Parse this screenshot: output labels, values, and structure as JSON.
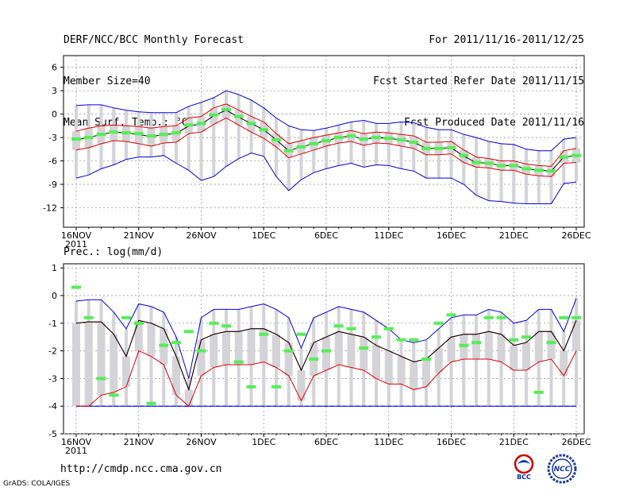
{
  "header": {
    "title": "DERF/NCC/BCC Monthly Forecast",
    "member_size": "Member Size=40",
    "variable": "Mean Surf. Temp.: °C",
    "period": "For 2011/11/16-2011/12/25",
    "fcst_started": "Fcst Started Refer Date 2011/11/15",
    "fcst_produced": "Fcst Produced Date 2011/11/16"
  },
  "footer": {
    "url": "http://cmdp.ncc.cma.gov.cn",
    "credit": "GrADS: COLA/IGES",
    "logo_bcc": "BCC",
    "logo_ncc": "NCC"
  },
  "colors": {
    "box": "#d3d3d8",
    "median": "#55ee55",
    "mean": "#000000",
    "spread": "#dd0000",
    "extreme": "#0000dd",
    "ref": "#0000ff"
  },
  "chart_data": [
    {
      "type": "line",
      "title": "Mean Surf. Temp.: °C",
      "x_tick_labels": [
        "16NOV",
        "21NOV",
        "26NOV",
        "1DEC",
        "6DEC",
        "11DEC",
        "16DEC",
        "21DEC",
        "26DEC"
      ],
      "x_year_label": "2011",
      "y_tick_labels": [
        "6",
        "3",
        "0",
        "-3",
        "-6",
        "-9",
        "-12"
      ],
      "ylim": [
        -14.5,
        7.5
      ],
      "days": 41,
      "series": [
        {
          "name": "max",
          "values": [
            1.1,
            1.2,
            1.2,
            0.8,
            0.5,
            0.3,
            0.2,
            0.2,
            0.2,
            1.0,
            1.5,
            2.1,
            3.0,
            2.5,
            1.8,
            0.8,
            -0.5,
            -1.5,
            -2.0,
            -2.1,
            -1.8,
            -1.4,
            -1.0,
            -0.8,
            -1.2,
            -1.2,
            -1.0,
            -1.1,
            -1.7,
            -2.0,
            -2.0,
            -2.6,
            -3.0,
            -3.5,
            -3.8,
            -3.9,
            -4.5,
            -4.7,
            -4.7,
            -3.2,
            -3.0
          ]
        },
        {
          "name": "upper",
          "values": [
            -2.2,
            -1.8,
            -1.5,
            -1.4,
            -1.5,
            -1.6,
            -1.8,
            -1.6,
            -1.5,
            -0.5,
            -0.3,
            0.8,
            1.3,
            0.5,
            -0.3,
            -1.0,
            -2.5,
            -3.8,
            -3.4,
            -3.0,
            -2.7,
            -2.4,
            -2.1,
            -2.5,
            -2.3,
            -2.4,
            -2.6,
            -2.8,
            -3.6,
            -3.6,
            -3.5,
            -4.6,
            -5.5,
            -5.7,
            -6.0,
            -6.0,
            -6.4,
            -6.6,
            -6.7,
            -4.7,
            -4.4
          ]
        },
        {
          "name": "mean",
          "values": [
            -3.3,
            -3.0,
            -2.6,
            -2.3,
            -2.4,
            -2.6,
            -2.9,
            -2.6,
            -2.5,
            -1.5,
            -1.3,
            -0.2,
            0.5,
            -0.4,
            -1.2,
            -2.0,
            -3.3,
            -4.7,
            -4.2,
            -3.8,
            -3.4,
            -3.0,
            -2.8,
            -3.2,
            -3.0,
            -3.1,
            -3.3,
            -3.6,
            -4.4,
            -4.4,
            -4.3,
            -5.4,
            -6.2,
            -6.3,
            -6.6,
            -6.6,
            -7.0,
            -7.2,
            -7.3,
            -5.5,
            -5.3
          ]
        },
        {
          "name": "lower",
          "values": [
            -4.6,
            -4.3,
            -3.8,
            -3.4,
            -3.5,
            -3.8,
            -4.1,
            -3.7,
            -3.6,
            -2.5,
            -2.3,
            -1.3,
            -0.5,
            -1.4,
            -2.3,
            -3.1,
            -4.2,
            -5.6,
            -5.1,
            -4.6,
            -4.1,
            -3.7,
            -3.5,
            -4.0,
            -3.7,
            -3.8,
            -4.1,
            -4.4,
            -5.2,
            -5.2,
            -5.1,
            -6.2,
            -6.8,
            -6.9,
            -7.2,
            -7.2,
            -7.7,
            -7.9,
            -8.0,
            -6.3,
            -6.2
          ]
        },
        {
          "name": "min",
          "values": [
            -8.2,
            -7.8,
            -7.0,
            -6.5,
            -5.8,
            -5.5,
            -5.5,
            -5.3,
            -6.3,
            -7.2,
            -8.5,
            -8.0,
            -6.7,
            -5.7,
            -5.0,
            -5.4,
            -8.0,
            -9.8,
            -8.4,
            -7.5,
            -7.0,
            -6.6,
            -6.3,
            -6.8,
            -6.5,
            -6.6,
            -7.0,
            -7.3,
            -8.2,
            -8.2,
            -8.2,
            -9.0,
            -10.4,
            -11.1,
            -11.2,
            -11.4,
            -11.5,
            -11.5,
            -11.5,
            -8.9,
            -8.7
          ]
        },
        {
          "name": "median",
          "values": [
            -3.2,
            -3.0,
            -2.6,
            -2.3,
            -2.4,
            -2.5,
            -2.8,
            -2.6,
            -2.4,
            -1.4,
            -1.2,
            -0.1,
            0.6,
            -0.3,
            -1.2,
            -2.0,
            -3.3,
            -4.7,
            -4.2,
            -3.8,
            -3.4,
            -3.0,
            -2.8,
            -3.2,
            -3.0,
            -3.1,
            -3.3,
            -3.6,
            -4.4,
            -4.4,
            -4.3,
            -5.3,
            -6.2,
            -6.3,
            -6.6,
            -6.6,
            -7.0,
            -7.2,
            -7.3,
            -5.5,
            -5.3
          ]
        }
      ]
    },
    {
      "type": "line",
      "title": "Prec.: log(mm/d)",
      "x_tick_labels": [
        "16NOV",
        "21NOV",
        "26NOV",
        "1DEC",
        "6DEC",
        "11DEC",
        "16DEC",
        "21DEC",
        "26DEC"
      ],
      "x_year_label": "2011",
      "y_tick_labels": [
        "1",
        "0",
        "-1",
        "-2",
        "-3",
        "-4",
        "-5"
      ],
      "ylim": [
        -5,
        1.15
      ],
      "days": 41,
      "reference_line": -4,
      "series": [
        {
          "name": "max",
          "values": [
            -0.2,
            -0.15,
            -0.15,
            -0.6,
            -1.2,
            -0.3,
            -0.4,
            -0.6,
            -1.5,
            -3.0,
            -0.8,
            -0.5,
            -0.5,
            -0.5,
            -0.4,
            -0.3,
            -0.5,
            -0.8,
            -1.9,
            -0.8,
            -0.6,
            -0.4,
            -0.5,
            -0.6,
            -0.9,
            -1.2,
            -1.6,
            -1.7,
            -1.6,
            -1.2,
            -0.8,
            -0.7,
            -0.7,
            -0.5,
            -0.6,
            -1.0,
            -0.9,
            -0.5,
            -0.5,
            -1.3,
            -0.1
          ]
        },
        {
          "name": "upper",
          "values": [
            -1.0,
            -0.95,
            -0.95,
            -1.4,
            -2.2,
            -0.9,
            -1.0,
            -1.2,
            -2.2,
            -3.4,
            -1.6,
            -1.4,
            -1.3,
            -1.3,
            -1.2,
            -1.2,
            -1.4,
            -1.7,
            -2.7,
            -1.7,
            -1.5,
            -1.3,
            -1.4,
            -1.5,
            -1.8,
            -2.0,
            -2.2,
            -2.4,
            -2.3,
            -1.9,
            -1.5,
            -1.4,
            -1.4,
            -1.3,
            -1.4,
            -1.8,
            -1.7,
            -1.3,
            -1.3,
            -2.0,
            -0.9
          ]
        },
        {
          "name": "mean",
          "values": [
            -1.0,
            -0.95,
            -0.95,
            -1.4,
            -2.2,
            -0.9,
            -1.0,
            -1.2,
            -2.2,
            -3.4,
            -1.6,
            -1.4,
            -1.3,
            -1.3,
            -1.2,
            -1.2,
            -1.4,
            -1.7,
            -2.7,
            -1.7,
            -1.5,
            -1.3,
            -1.4,
            -1.5,
            -1.8,
            -2.0,
            -2.2,
            -2.4,
            -2.3,
            -1.9,
            -1.5,
            -1.4,
            -1.4,
            -1.3,
            -1.4,
            -1.8,
            -1.7,
            -1.3,
            -1.3,
            -2.0,
            -0.9
          ]
        },
        {
          "name": "lower",
          "values": [
            -4.0,
            -4.0,
            -3.6,
            -3.5,
            -3.3,
            -2.0,
            -2.2,
            -2.5,
            -3.6,
            -4.0,
            -2.9,
            -2.6,
            -2.5,
            -2.5,
            -2.5,
            -2.4,
            -2.6,
            -2.9,
            -3.8,
            -2.9,
            -2.7,
            -2.5,
            -2.6,
            -2.7,
            -3.0,
            -3.2,
            -3.2,
            -3.4,
            -3.3,
            -2.8,
            -2.4,
            -2.3,
            -2.3,
            -2.3,
            -2.4,
            -2.7,
            -2.7,
            -2.4,
            -2.3,
            -2.9,
            -2.0
          ]
        },
        {
          "name": "min",
          "values": [
            -4.0,
            -4.0,
            -4.0,
            -4.0,
            -4.0,
            -4.0,
            -4.0,
            -4.0,
            -4.0,
            -4.0,
            -4.0,
            -4.0,
            -4.0,
            -4.0,
            -4.0,
            -4.0,
            -4.0,
            -4.0,
            -4.0,
            -4.0,
            -4.0,
            -4.0,
            -4.0,
            -4.0,
            -4.0,
            -4.0,
            -4.0,
            -4.0,
            -4.0,
            -4.0,
            -4.0,
            -4.0,
            -4.0,
            -4.0,
            -4.0,
            -4.0,
            -4.0,
            -4.0,
            -4.0,
            -4.0,
            -4.0
          ]
        },
        {
          "name": "median",
          "values": [
            0.3,
            -0.8,
            -3.0,
            -3.6,
            -0.8,
            -1.0,
            -3.9,
            -1.8,
            -1.7,
            -1.3,
            -2.0,
            -1.0,
            -1.1,
            -2.4,
            -3.3,
            -1.4,
            -3.3,
            -2.0,
            -1.4,
            -2.3,
            -2.0,
            -1.1,
            -1.2,
            -1.9,
            -1.5,
            -1.2,
            -1.6,
            -1.6,
            -2.3,
            -1.0,
            -0.7,
            -1.8,
            -1.7,
            -0.8,
            -0.8,
            -1.6,
            -1.5,
            -3.5,
            -1.7,
            -0.8,
            -0.8
          ]
        }
      ]
    }
  ]
}
